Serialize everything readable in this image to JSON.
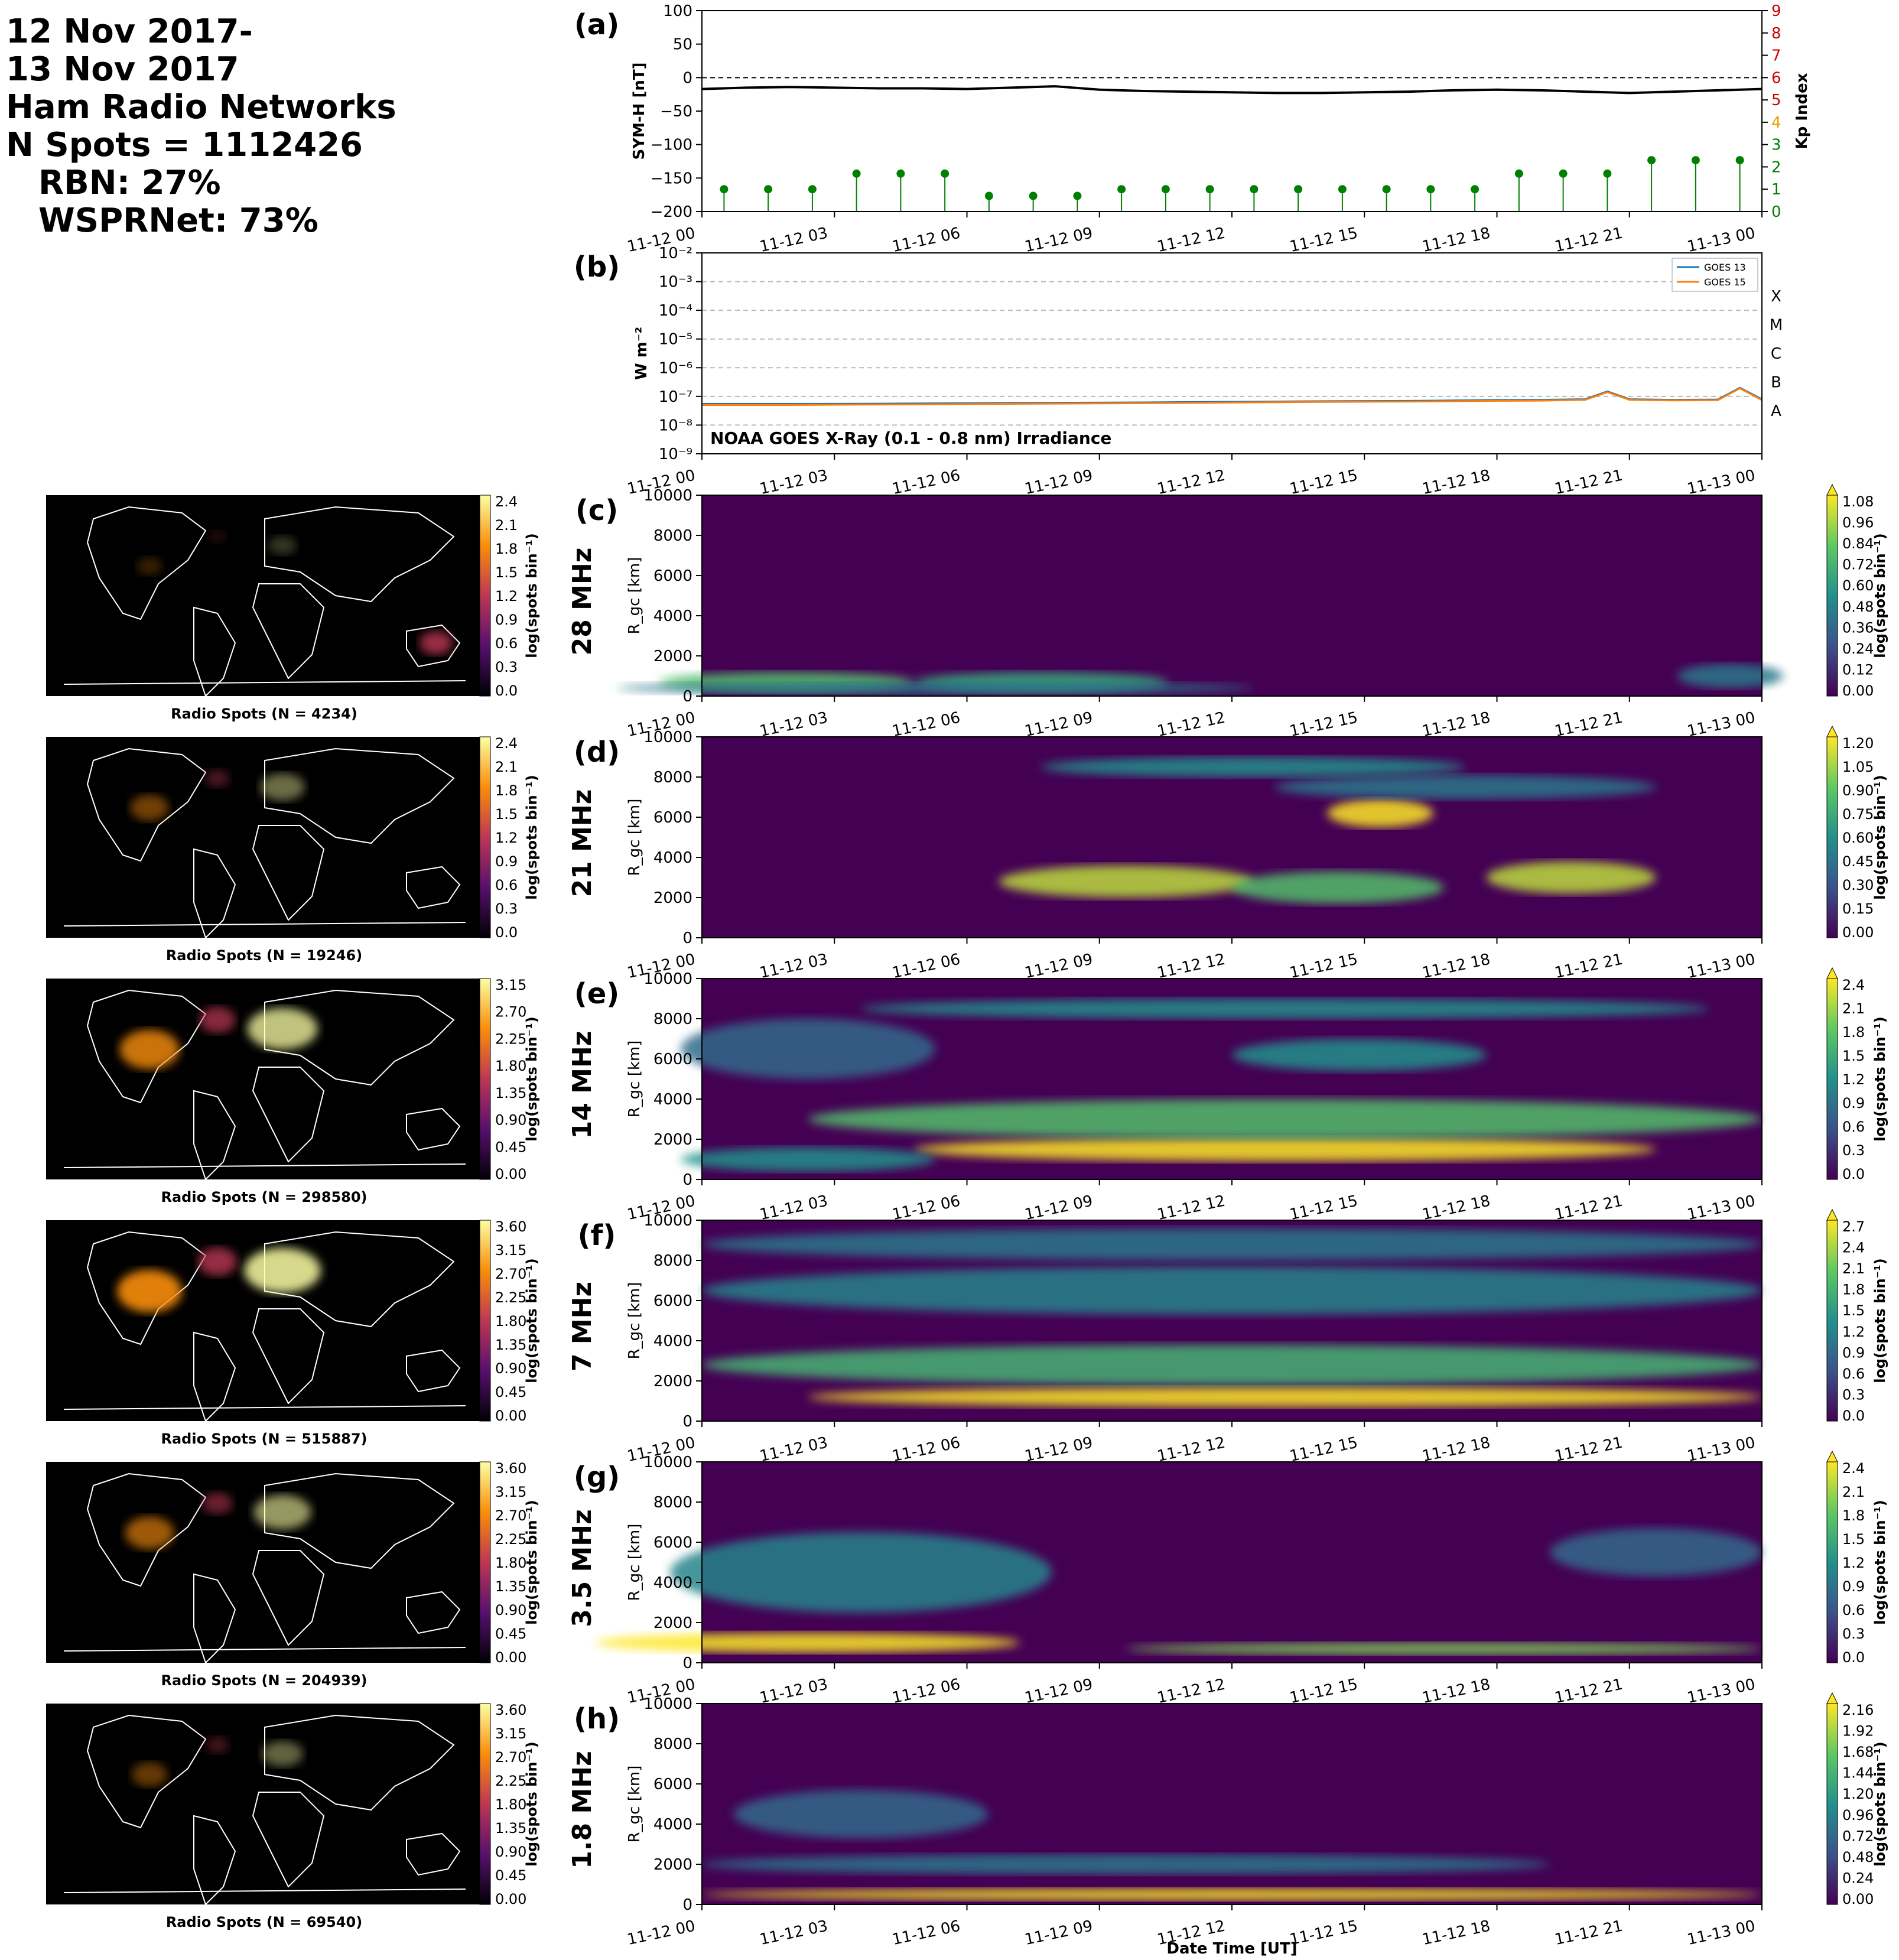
{
  "title_lines": {
    "line1": "12 Nov 2017-",
    "line2": "13 Nov 2017",
    "line3": "Ham Radio Networks",
    "line4": "N Spots = 1112426",
    "line5": "RBN: 27%",
    "line6": "WSPRNet: 73%"
  },
  "colors": {
    "symh_line": "#000000",
    "kp_stem": "#008000",
    "kp_axis": "#d00000",
    "goes13": "#1f77b4",
    "goes15": "#ff7f0e",
    "map_bg": "#000000",
    "coast": "#ffffff"
  },
  "time_ticks": [
    "11-12 00",
    "11-12 03",
    "11-12 06",
    "11-12 09",
    "11-12 12",
    "11-12 15",
    "11-12 18",
    "11-12 21",
    "11-13 00"
  ],
  "xlabel": "Date Time [UT]",
  "chart_data": [
    {
      "type": "line",
      "panel": "(a)",
      "ylabel": "SYM-H [nT]",
      "ylabel2": "Kp Index",
      "ylim": [
        -200,
        100
      ],
      "ylim2": [
        0,
        9
      ],
      "yticks": [
        "100",
        "50",
        "0",
        "−50",
        "−100",
        "−150",
        "−200"
      ],
      "yticks2": [
        "9",
        "8",
        "7",
        "6",
        "5",
        "4",
        "3",
        "2",
        "1",
        "0"
      ],
      "series": [
        {
          "x": [
            0,
            1,
            2,
            3,
            4,
            5,
            6,
            7,
            8,
            9,
            10,
            11,
            12,
            13,
            14,
            15,
            16,
            17,
            18,
            19,
            20,
            21,
            22,
            23,
            24
          ],
          "values": [
            -17,
            -15,
            -14,
            -15,
            -16,
            -16,
            -17,
            -15,
            -13,
            -18,
            -20,
            -21,
            -22,
            -23,
            -23,
            -22,
            -21,
            -19,
            -18,
            -19,
            -21,
            -23,
            -21,
            -19,
            -17
          ]
        },
        {
          "x": [
            0,
            1,
            2,
            3,
            4,
            5,
            6,
            7,
            8,
            9,
            10,
            11,
            12,
            13,
            14,
            15,
            16,
            17,
            18,
            19,
            20,
            21,
            22,
            23
          ],
          "values": [
            1,
            1,
            1,
            1.7,
            1.7,
            1.7,
            0.7,
            0.7,
            0.7,
            1,
            1,
            1,
            1,
            1,
            1,
            1,
            1,
            1,
            1.7,
            1.7,
            1.7,
            2.3,
            2.3,
            2.3
          ]
        }
      ]
    },
    {
      "type": "line",
      "panel": "(b)",
      "ylabel": "W m⁻²",
      "yscale": "log",
      "yticks": [
        "10⁻²",
        "10⁻³",
        "10⁻⁴",
        "10⁻⁵",
        "10⁻⁶",
        "10⁻⁷",
        "10⁻⁸",
        "10⁻⁹"
      ],
      "class_labels": [
        "X",
        "M",
        "C",
        "B",
        "A"
      ],
      "annotation": "NOAA GOES X-Ray (0.1 - 0.8 nm) Irradiance",
      "series": [
        {
          "name": "GOES 13",
          "x": [
            0,
            2,
            4,
            6,
            8,
            10,
            12,
            14,
            16,
            18,
            19,
            20,
            20.5,
            21,
            22,
            23,
            23.5,
            24
          ],
          "values": [
            5.5e-08,
            5.5e-08,
            5.6e-08,
            5.8e-08,
            6e-08,
            6.2e-08,
            6.5e-08,
            6.8e-08,
            7e-08,
            7.5e-08,
            7.6e-08,
            8e-08,
            1.5e-07,
            8e-08,
            7.6e-08,
            7.8e-08,
            2e-07,
            8e-08
          ]
        },
        {
          "name": "GOES 15",
          "x": [
            0,
            2,
            4,
            6,
            8,
            10,
            12,
            14,
            16,
            18,
            19,
            20,
            20.5,
            21,
            22,
            23,
            23.5,
            24
          ],
          "values": [
            5e-08,
            5e-08,
            5.2e-08,
            5.4e-08,
            5.6e-08,
            5.8e-08,
            6.1e-08,
            6.4e-08,
            6.6e-08,
            7e-08,
            7.1e-08,
            7.6e-08,
            1.4e-07,
            7.6e-08,
            7.2e-08,
            7.4e-08,
            1.9e-07,
            7.5e-08
          ]
        }
      ],
      "legend": "top-right"
    },
    {
      "type": "heatmap",
      "panels": [
        {
          "id": "(c)",
          "band": "28 MHz",
          "map_caption": "Radio Spots (N = 4234)",
          "map_cb_ticks": [
            "2.4",
            "2.1",
            "1.8",
            "1.5",
            "1.2",
            "0.9",
            "0.6",
            "0.3",
            "0.0"
          ],
          "cb_ticks": [
            "1.08",
            "0.96",
            "0.84",
            "0.72",
            "0.60",
            "0.48",
            "0.36",
            "0.24",
            "0.12",
            "0.00"
          ],
          "ylabel": "R_gc [km]",
          "yticks": [
            "10000",
            "8000",
            "6000",
            "4000",
            "2000",
            "0"
          ],
          "cb_label": "log(spots bin⁻¹)"
        },
        {
          "id": "(d)",
          "band": "21 MHz",
          "map_caption": "Radio Spots (N = 19246)",
          "map_cb_ticks": [
            "2.4",
            "2.1",
            "1.8",
            "1.5",
            "1.2",
            "0.9",
            "0.6",
            "0.3",
            "0.0"
          ],
          "cb_ticks": [
            "1.20",
            "1.05",
            "0.90",
            "0.75",
            "0.60",
            "0.45",
            "0.30",
            "0.15",
            "0.00"
          ],
          "ylabel": "R_gc [km]",
          "yticks": [
            "10000",
            "8000",
            "6000",
            "4000",
            "2000",
            "0"
          ],
          "cb_label": "log(spots bin⁻¹)"
        },
        {
          "id": "(e)",
          "band": "14 MHz",
          "map_caption": "Radio Spots (N = 298580)",
          "map_cb_ticks": [
            "3.15",
            "2.70",
            "2.25",
            "1.80",
            "1.35",
            "0.90",
            "0.45",
            "0.00"
          ],
          "cb_ticks": [
            "2.4",
            "2.1",
            "1.8",
            "1.5",
            "1.2",
            "0.9",
            "0.6",
            "0.3",
            "0.0"
          ],
          "ylabel": "R_gc [km]",
          "yticks": [
            "10000",
            "8000",
            "6000",
            "4000",
            "2000",
            "0"
          ],
          "cb_label": "log(spots bin⁻¹)"
        },
        {
          "id": "(f)",
          "band": "7 MHz",
          "map_caption": "Radio Spots (N = 515887)",
          "map_cb_ticks": [
            "3.60",
            "3.15",
            "2.70",
            "2.25",
            "1.80",
            "1.35",
            "0.90",
            "0.45",
            "0.00"
          ],
          "cb_ticks": [
            "2.7",
            "2.4",
            "2.1",
            "1.8",
            "1.5",
            "1.2",
            "0.9",
            "0.6",
            "0.3",
            "0.0"
          ],
          "ylabel": "R_gc [km]",
          "yticks": [
            "10000",
            "8000",
            "6000",
            "4000",
            "2000",
            "0"
          ],
          "cb_label": "log(spots bin⁻¹)"
        },
        {
          "id": "(g)",
          "band": "3.5 MHz",
          "map_caption": "Radio Spots (N = 204939)",
          "map_cb_ticks": [
            "3.60",
            "3.15",
            "2.70",
            "2.25",
            "1.80",
            "1.35",
            "0.90",
            "0.45",
            "0.00"
          ],
          "cb_ticks": [
            "2.4",
            "2.1",
            "1.8",
            "1.5",
            "1.2",
            "0.9",
            "0.6",
            "0.3",
            "0.0"
          ],
          "ylabel": "R_gc [km]",
          "yticks": [
            "10000",
            "8000",
            "6000",
            "4000",
            "2000",
            "0"
          ],
          "cb_label": "log(spots bin⁻¹)"
        },
        {
          "id": "(h)",
          "band": "1.8 MHz",
          "map_caption": "Radio Spots (N = 69540)",
          "map_cb_ticks": [
            "3.60",
            "3.15",
            "2.70",
            "2.25",
            "1.80",
            "1.35",
            "0.90",
            "0.45",
            "0.00"
          ],
          "cb_ticks": [
            "2.16",
            "1.92",
            "1.68",
            "1.44",
            "1.20",
            "0.96",
            "0.72",
            "0.48",
            "0.24",
            "0.00"
          ],
          "ylabel": "R_gc [km]",
          "yticks": [
            "10000",
            "8000",
            "6000",
            "4000",
            "2000",
            "0"
          ],
          "cb_label": "log(spots bin⁻¹)"
        }
      ]
    }
  ]
}
